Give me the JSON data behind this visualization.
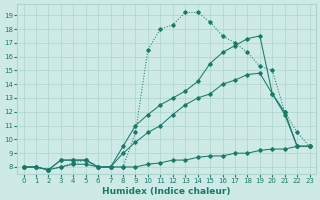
{
  "line1_x": [
    0,
    1,
    2,
    3,
    4,
    5,
    6,
    7,
    8,
    9,
    10,
    11,
    12,
    13,
    14,
    15,
    16,
    17,
    18,
    19,
    20,
    21,
    22,
    23
  ],
  "line1_y": [
    8.0,
    8.0,
    7.8,
    8.0,
    8.3,
    8.5,
    8.0,
    8.0,
    8.0,
    10.5,
    16.5,
    18.0,
    18.3,
    19.2,
    19.2,
    18.5,
    17.5,
    17.0,
    16.3,
    15.3,
    15.0,
    12.0,
    10.5,
    9.5
  ],
  "line2_x": [
    0,
    1,
    2,
    3,
    4,
    5,
    6,
    7,
    8,
    9,
    10,
    11,
    12,
    13,
    14,
    15,
    16,
    17,
    18,
    19,
    20,
    21,
    22,
    23
  ],
  "line2_y": [
    8.0,
    8.0,
    7.8,
    8.5,
    8.5,
    8.5,
    8.0,
    8.0,
    9.5,
    11.0,
    11.8,
    12.5,
    13.0,
    13.5,
    14.2,
    15.5,
    16.3,
    16.8,
    17.3,
    17.5,
    13.3,
    11.8,
    9.5,
    9.5
  ],
  "line3_x": [
    0,
    1,
    2,
    3,
    4,
    5,
    6,
    7,
    8,
    9,
    10,
    11,
    12,
    13,
    14,
    15,
    16,
    17,
    18,
    19,
    20,
    21,
    22,
    23
  ],
  "line3_y": [
    8.0,
    8.0,
    7.8,
    8.5,
    8.5,
    8.5,
    8.0,
    8.0,
    9.0,
    9.8,
    10.5,
    11.0,
    11.8,
    12.5,
    13.0,
    13.3,
    14.0,
    14.3,
    14.7,
    14.8,
    13.3,
    12.0,
    9.5,
    9.5
  ],
  "line4_x": [
    0,
    1,
    2,
    3,
    4,
    5,
    6,
    7,
    8,
    9,
    10,
    11,
    12,
    13,
    14,
    15,
    16,
    17,
    18,
    19,
    20,
    21,
    22,
    23
  ],
  "line4_y": [
    8.0,
    8.0,
    7.8,
    8.0,
    8.2,
    8.2,
    8.0,
    8.0,
    8.0,
    8.0,
    8.2,
    8.3,
    8.5,
    8.5,
    8.7,
    8.8,
    8.8,
    9.0,
    9.0,
    9.2,
    9.3,
    9.3,
    9.5,
    9.5
  ],
  "color": "#1a7a6a",
  "bg_color": "#ceeae6",
  "grid_color": "#aed4cf",
  "xlabel": "Humidex (Indice chaleur)",
  "xlim": [
    -0.5,
    23.5
  ],
  "ylim": [
    7.5,
    19.8
  ],
  "xticks": [
    0,
    1,
    2,
    3,
    4,
    5,
    6,
    7,
    8,
    9,
    10,
    11,
    12,
    13,
    14,
    15,
    16,
    17,
    18,
    19,
    20,
    21,
    22,
    23
  ],
  "yticks": [
    8,
    9,
    10,
    11,
    12,
    13,
    14,
    15,
    16,
    17,
    18,
    19
  ],
  "tick_fontsize": 5.0,
  "xlabel_fontsize": 6.5
}
